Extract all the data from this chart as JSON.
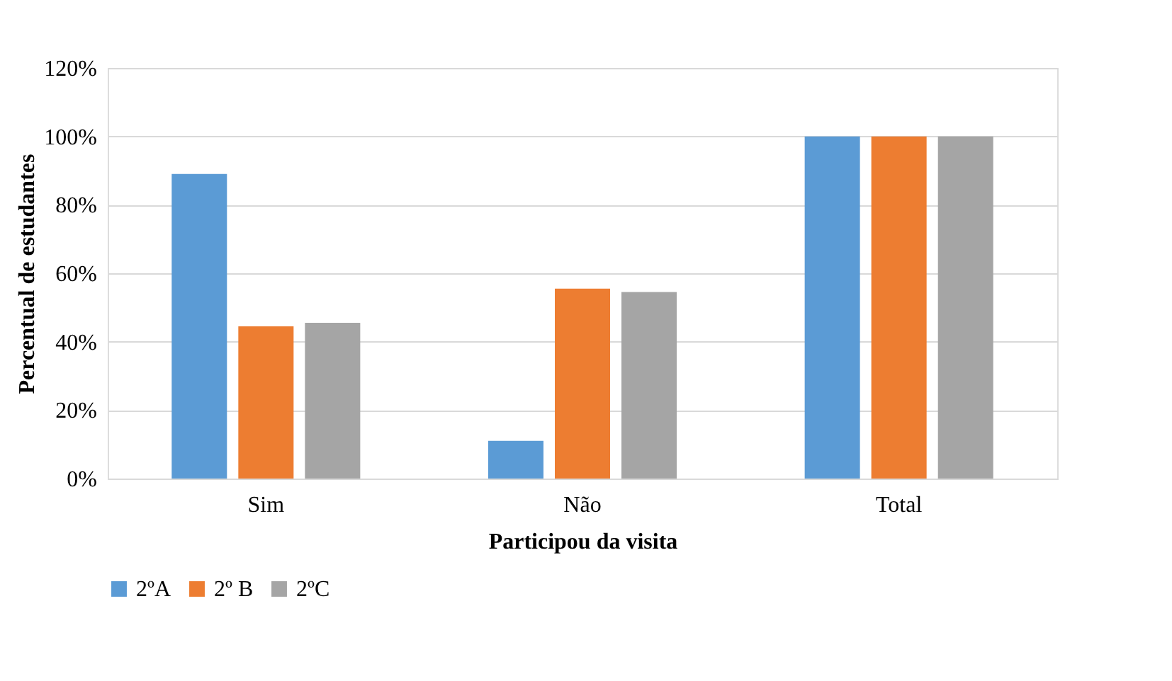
{
  "chart_data": {
    "type": "bar",
    "xlabel": "Participou da visita",
    "ylabel": "Percentual de estudantes",
    "categories": [
      "Sim",
      "Não",
      "Total"
    ],
    "series": [
      {
        "name": "2ºA",
        "color": "#5b9bd5",
        "values": [
          89,
          11,
          100
        ]
      },
      {
        "name": "2º B",
        "color": "#ed7d31",
        "values": [
          44.5,
          55.5,
          100
        ]
      },
      {
        "name": "2ºC",
        "color": "#a5a5a5",
        "values": [
          45.5,
          54.5,
          100
        ]
      }
    ],
    "ylim": [
      0,
      120
    ],
    "yticks": [
      {
        "value": 0,
        "label": "0%"
      },
      {
        "value": 20,
        "label": "20%"
      },
      {
        "value": 40,
        "label": "40%"
      },
      {
        "value": 60,
        "label": "60%"
      },
      {
        "value": 80,
        "label": "80%"
      },
      {
        "value": 100,
        "label": "100%"
      },
      {
        "value": 120,
        "label": "120%"
      }
    ],
    "grid": "y",
    "legend": "bottom"
  }
}
